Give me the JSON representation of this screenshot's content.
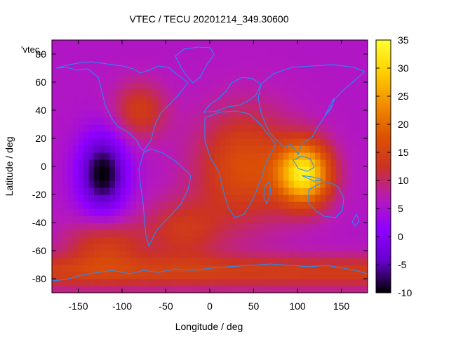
{
  "chart_data": {
    "type": "heatmap",
    "title": "VTEC / TECU 20201214_349.30600",
    "xlabel": "Longitude / deg",
    "ylabel": "Latitude / deg",
    "key_label": "'vtec_",
    "xlim": [
      -180,
      180
    ],
    "ylim": [
      -90,
      90
    ],
    "x_ticks": [
      -150,
      -100,
      -50,
      0,
      50,
      100,
      150
    ],
    "y_ticks": [
      -80,
      -60,
      -40,
      -20,
      0,
      20,
      40,
      60,
      80
    ],
    "colorbar": {
      "min": -10,
      "max": 35,
      "ticks": [
        -10,
        -5,
        0,
        5,
        10,
        15,
        20,
        25,
        30,
        35
      ],
      "palette": [
        "#000000",
        "#6600cc",
        "#8f00ff",
        "#b71ab9",
        "#cc3322",
        "#dd5500",
        "#f39000",
        "#ffd000",
        "#ffff33"
      ]
    },
    "features": [
      {
        "name": "baseline",
        "value": 6
      },
      {
        "name": "low-eastern-pacific",
        "lon": -122,
        "lat": -5,
        "value": -10
      },
      {
        "name": "equatorial-anomaly-asia",
        "lon": 108,
        "lat": -5,
        "value": 31
      },
      {
        "name": "africa-indian-ocean",
        "lon": 40,
        "lat": 0,
        "value": 18
      },
      {
        "name": "north-america",
        "lon": -80,
        "lat": 40,
        "value": 14
      },
      {
        "name": "south-atlantic",
        "lon": -30,
        "lat": -45,
        "value": 13
      },
      {
        "name": "south-pacific",
        "lon": -120,
        "lat": -55,
        "value": 14
      },
      {
        "name": "antarctic-ring",
        "lat": -75,
        "value": 14
      }
    ]
  }
}
